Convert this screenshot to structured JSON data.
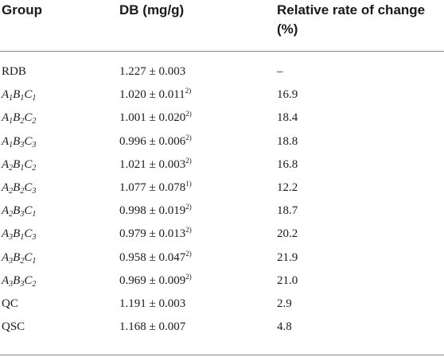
{
  "header": {
    "group": "Group",
    "db": "DB (mg/g)",
    "rate": "Relative rate of change (%)"
  },
  "rows": [
    {
      "group_plain": "RDB",
      "db": "1.227 ± 0.003",
      "sup": "",
      "rate": "–"
    },
    {
      "A": "1",
      "B": "1",
      "C": "1",
      "db": "1.020 ± 0.011",
      "sup": "2)",
      "rate": "16.9"
    },
    {
      "A": "1",
      "B": "2",
      "C": "2",
      "db": "1.001 ± 0.020",
      "sup": "2)",
      "rate": "18.4"
    },
    {
      "A": "1",
      "B": "3",
      "C": "3",
      "db": "0.996 ± 0.006",
      "sup": "2)",
      "rate": "18.8"
    },
    {
      "A": "2",
      "B": "1",
      "C": "2",
      "db": "1.021 ± 0.003",
      "sup": "2)",
      "rate": "16.8"
    },
    {
      "A": "2",
      "B": "2",
      "C": "3",
      "db": "1.077 ± 0.078",
      "sup": "1)",
      "rate": "12.2"
    },
    {
      "A": "2",
      "B": "3",
      "C": "1",
      "db": "0.998 ± 0.019",
      "sup": "2)",
      "rate": "18.7"
    },
    {
      "A": "3",
      "B": "1",
      "C": "3",
      "db": "0.979 ± 0.013",
      "sup": "2)",
      "rate": "20.2"
    },
    {
      "A": "3",
      "B": "2",
      "C": "1",
      "db": "0.958 ± 0.047",
      "sup": "2)",
      "rate": "21.9"
    },
    {
      "A": "3",
      "B": "3",
      "C": "2",
      "db": "0.969 ± 0.009",
      "sup": "2)",
      "rate": "21.0"
    },
    {
      "group_plain": "QC",
      "db": "1.191 ± 0.003",
      "sup": "",
      "rate": "2.9"
    },
    {
      "group_plain": "QSC",
      "db": "1.168 ± 0.007",
      "sup": "",
      "rate": "4.8"
    }
  ]
}
